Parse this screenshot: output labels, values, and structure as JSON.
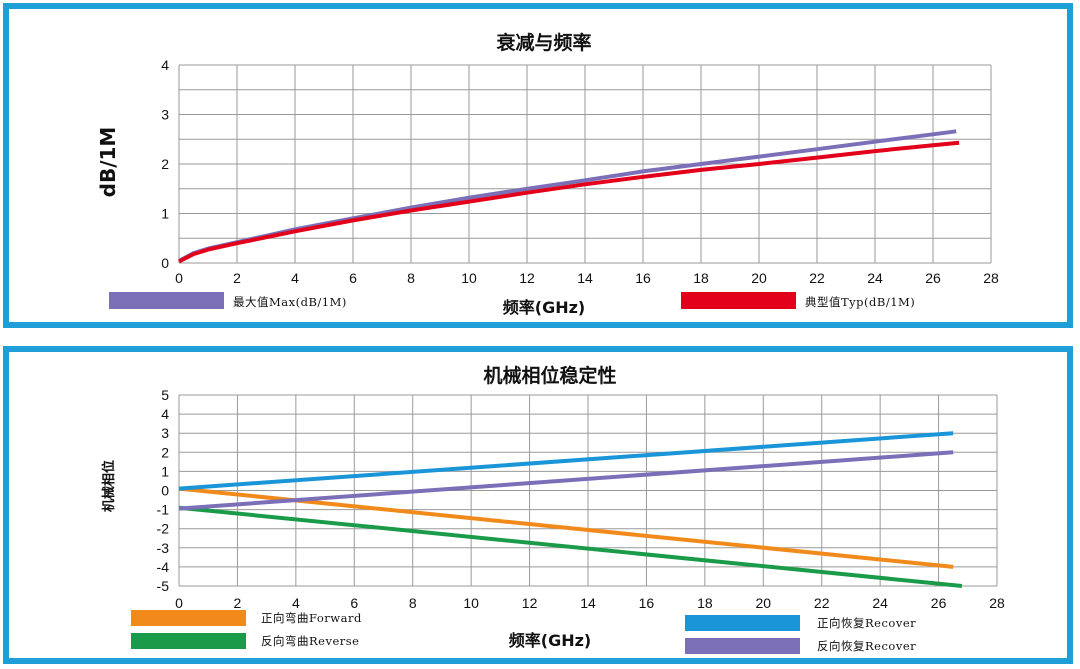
{
  "chart_data": [
    {
      "type": "line",
      "title": "衰减与频率",
      "xlabel": "频率(GHz)",
      "ylabel": "dB/1M",
      "xlim": [
        0,
        28
      ],
      "ylim": [
        0,
        4
      ],
      "xticks": [
        0,
        2,
        4,
        6,
        8,
        10,
        12,
        14,
        16,
        18,
        20,
        22,
        24,
        26,
        28
      ],
      "yticks": [
        0,
        1,
        2,
        3,
        4
      ],
      "grid": true,
      "legend_position": "bottom",
      "series": [
        {
          "name": "最大值Max(dB/1M)",
          "color": "#7b6fb8",
          "x": [
            0,
            0.5,
            1,
            2,
            3,
            4,
            6,
            8,
            10,
            12,
            14,
            16,
            18,
            20,
            22,
            24,
            26,
            26.8
          ],
          "y": [
            0.04,
            0.2,
            0.29,
            0.42,
            0.55,
            0.68,
            0.9,
            1.12,
            1.32,
            1.5,
            1.67,
            1.85,
            2.0,
            2.15,
            2.3,
            2.45,
            2.6,
            2.66
          ]
        },
        {
          "name": "典型值Typ(dB/1M)",
          "color": "#e2001a",
          "x": [
            0,
            0.5,
            1,
            2,
            3,
            4,
            6,
            8,
            10,
            12,
            14,
            16,
            18,
            20,
            22,
            24,
            26,
            26.9
          ],
          "y": [
            0.03,
            0.18,
            0.27,
            0.4,
            0.52,
            0.64,
            0.86,
            1.06,
            1.24,
            1.42,
            1.59,
            1.74,
            1.88,
            2.0,
            2.13,
            2.26,
            2.38,
            2.43
          ]
        }
      ]
    },
    {
      "type": "line",
      "title": "机械相位稳定性",
      "xlabel": "频率(GHz)",
      "ylabel": "机械相位",
      "xlim": [
        0,
        28
      ],
      "ylim": [
        -5,
        5
      ],
      "xticks": [
        0,
        2,
        4,
        6,
        8,
        10,
        12,
        14,
        16,
        18,
        20,
        22,
        24,
        26,
        28
      ],
      "yticks": [
        5,
        4,
        3,
        2,
        1,
        0,
        -1,
        -2,
        -3,
        -4,
        -5
      ],
      "grid": true,
      "legend_position": "bottom",
      "series": [
        {
          "name": "正向弯曲Forward",
          "color": "#f18a1a",
          "x": [
            0,
            26.5
          ],
          "y": [
            0.1,
            -4.0
          ]
        },
        {
          "name": "反向弯曲Reverse",
          "color": "#1a9b4a",
          "x": [
            0,
            26.8
          ],
          "y": [
            -0.9,
            -5.0
          ]
        },
        {
          "name": "正向恢复Recover",
          "color": "#1a96d8",
          "x": [
            0,
            26.5
          ],
          "y": [
            0.1,
            3.0
          ]
        },
        {
          "name": "反向恢复Recover",
          "color": "#7b6fb8",
          "x": [
            0,
            26.5
          ],
          "y": [
            -0.95,
            2.0
          ]
        }
      ]
    }
  ]
}
